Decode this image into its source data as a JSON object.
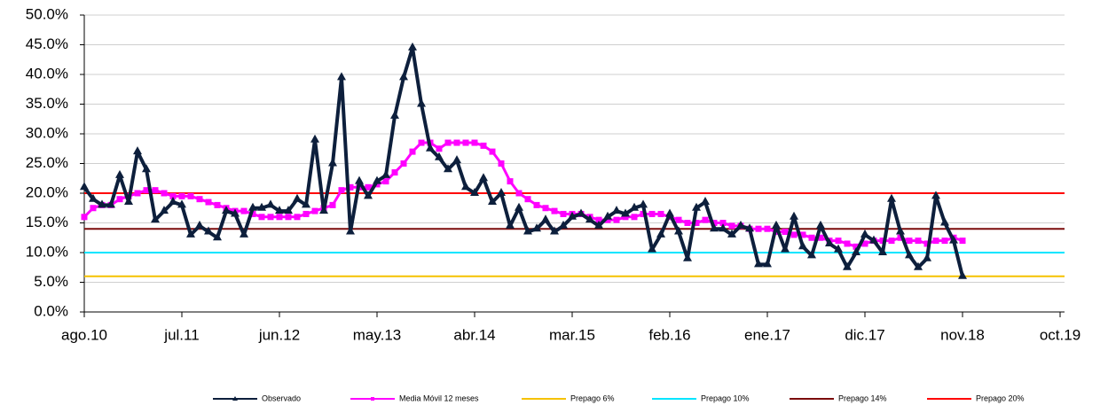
{
  "chart_data": {
    "type": "line",
    "categories": [
      "ago.10",
      null,
      null,
      null,
      null,
      null,
      null,
      null,
      null,
      null,
      null,
      "jul.11",
      null,
      null,
      null,
      null,
      null,
      null,
      null,
      null,
      null,
      null,
      "jun.12",
      null,
      null,
      null,
      null,
      null,
      null,
      null,
      null,
      null,
      null,
      "may.13",
      null,
      null,
      null,
      null,
      null,
      null,
      null,
      null,
      null,
      null,
      "abr.14",
      null,
      null,
      null,
      null,
      null,
      null,
      null,
      null,
      null,
      null,
      "mar.15",
      null,
      null,
      null,
      null,
      null,
      null,
      null,
      null,
      null,
      null,
      "feb.16",
      null,
      null,
      null,
      null,
      null,
      null,
      null,
      null,
      null,
      null,
      "ene.17",
      null,
      null,
      null,
      null,
      null,
      null,
      null,
      null,
      null,
      null,
      "dic.17",
      null,
      null,
      null,
      null,
      null,
      null,
      null,
      null,
      null,
      null,
      "nov.18",
      null,
      null,
      null,
      null,
      null,
      null,
      null,
      null,
      null,
      null,
      "oct.19"
    ],
    "series": [
      {
        "name": "Observado",
        "color": "#0d1f3c",
        "marker": "triangle",
        "values": [
          21,
          19,
          18,
          18,
          23,
          18.5,
          27,
          24,
          15.5,
          17,
          18.5,
          18,
          13,
          14.5,
          13.5,
          12.5,
          17,
          16.5,
          13,
          17.5,
          17.5,
          18,
          17,
          17,
          19,
          18,
          29,
          17,
          25,
          39.5,
          13.5,
          22,
          19.5,
          22,
          23,
          33,
          39.5,
          44.5,
          35,
          27.5,
          26,
          24,
          25.5,
          21,
          20,
          22.5,
          18.5,
          20,
          14.5,
          17.5,
          13.5,
          14,
          15.5,
          13.5,
          14.5,
          16,
          16.5,
          15.5,
          14.5,
          16,
          17,
          16.5,
          17.5,
          18,
          10.5,
          13,
          16.5,
          13.5,
          9,
          17.5,
          18.5,
          14,
          14,
          13,
          14.5,
          14,
          8,
          8,
          14.5,
          10.5,
          16,
          11,
          9.5,
          14.5,
          11.5,
          10.5,
          7.5,
          10,
          13,
          12,
          10,
          19,
          13.5,
          9.5,
          7.5,
          9,
          19.5,
          15,
          12,
          6,
          null,
          null,
          null,
          null,
          null,
          null,
          null,
          null,
          null,
          null,
          null
        ]
      },
      {
        "name": "Media Móvil 12 meses",
        "color": "#ff00ff",
        "marker": "square",
        "values": [
          16,
          17.5,
          18,
          18,
          19,
          19.5,
          20,
          20.5,
          20.5,
          20,
          19.5,
          19.5,
          19.5,
          19,
          18.5,
          18,
          17.5,
          17,
          17,
          16.5,
          16,
          16,
          16,
          16,
          16,
          16.5,
          17,
          17.5,
          18,
          20.5,
          21,
          21,
          21,
          21.5,
          22,
          23.5,
          25,
          27,
          28.5,
          28.5,
          27.5,
          28.5,
          28.5,
          28.5,
          28.5,
          28,
          27,
          25,
          22,
          20,
          19,
          18,
          17.5,
          17,
          16.5,
          16.5,
          16.5,
          16,
          15.5,
          15.5,
          15.5,
          16,
          16,
          16.5,
          16.5,
          16.5,
          16,
          15.5,
          15,
          15,
          15.5,
          15,
          15,
          14.5,
          14.5,
          14,
          14,
          14,
          13.5,
          13.5,
          13,
          13,
          12.5,
          12.5,
          12,
          12,
          11.5,
          11,
          11.5,
          12,
          12,
          12,
          12.5,
          12,
          12,
          11.5,
          12,
          12,
          12.5,
          12,
          null,
          null,
          null,
          null,
          null,
          null,
          null,
          null,
          null,
          null,
          null
        ]
      }
    ],
    "reference_lines": [
      {
        "name": "Prepago 6%",
        "value": 6,
        "color": "#f5c200"
      },
      {
        "name": "Prepago 10%",
        "value": 10,
        "color": "#00e5ff"
      },
      {
        "name": "Prepago 14%",
        "value": 14,
        "color": "#7b0c0c"
      },
      {
        "name": "Prepago 20%",
        "value": 20,
        "color": "#ff0000"
      }
    ],
    "ylim": [
      0,
      50
    ],
    "yticks": [
      {
        "value": 0,
        "label": "0.0%"
      },
      {
        "value": 5,
        "label": "5.0%"
      },
      {
        "value": 10,
        "label": "10.0%"
      },
      {
        "value": 15,
        "label": "15.0%"
      },
      {
        "value": 20,
        "label": "20.0%"
      },
      {
        "value": 25,
        "label": "25.0%"
      },
      {
        "value": 30,
        "label": "30.0%"
      },
      {
        "value": 35,
        "label": "35.0%"
      },
      {
        "value": 40,
        "label": "40.0%"
      },
      {
        "value": 45,
        "label": "45.0%"
      },
      {
        "value": 50,
        "label": "50.0%"
      }
    ],
    "grid": true,
    "legend": "bottom"
  }
}
